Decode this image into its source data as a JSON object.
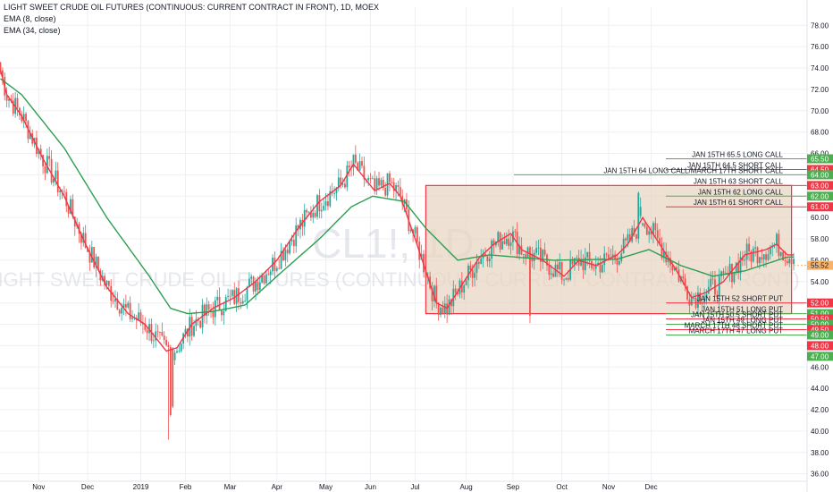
{
  "header": {
    "title": "LIGHT SWEET CRUDE OIL FUTURES (CONTINUOUS: CURRENT CONTRACT IN FRONT), 1D, MOEX",
    "indicator1": "EMA (8, close)",
    "indicator2": "EMA (34, close)"
  },
  "watermark": {
    "symbol": "CL1!, 1D",
    "description": "LIGHT SWEET CRUDE OIL FUTURES (CONTINUOUS: CURRENT CONTRACT IN FRONT)"
  },
  "chart_data": {
    "type": "candlestick",
    "ylim": [
      35.3,
      79.7
    ],
    "y_ticks": [
      36,
      38,
      40,
      42,
      44,
      46,
      48,
      50,
      52,
      54,
      56,
      58,
      60,
      62,
      64,
      66,
      68,
      70,
      72,
      74,
      76,
      78
    ],
    "x_ticks": [
      "Nov",
      "Dec",
      "2019",
      "Feb",
      "Mar",
      "Apr",
      "May",
      "Jun",
      "Jul",
      "Aug",
      "Sep",
      "Oct",
      "Nov",
      "Dec"
    ],
    "last_price": "55.52",
    "ema_fast_key": [
      [
        0,
        73.8
      ],
      [
        3,
        71.5
      ],
      [
        10,
        69.5
      ],
      [
        20,
        65.5
      ],
      [
        30,
        62
      ],
      [
        40,
        57.5
      ],
      [
        50,
        53.5
      ],
      [
        60,
        51
      ],
      [
        68,
        50
      ],
      [
        74,
        48.5
      ],
      [
        78,
        47.5
      ],
      [
        83,
        47.8
      ],
      [
        90,
        50
      ],
      [
        100,
        51.5
      ],
      [
        110,
        52.5
      ],
      [
        120,
        54
      ],
      [
        130,
        56
      ],
      [
        140,
        59
      ],
      [
        150,
        61.5
      ],
      [
        160,
        63
      ],
      [
        166,
        65
      ],
      [
        170,
        64
      ],
      [
        176,
        62.5
      ],
      [
        183,
        63.2
      ],
      [
        188,
        62
      ],
      [
        195,
        58
      ],
      [
        205,
        52
      ],
      [
        210,
        51.5
      ],
      [
        218,
        54
      ],
      [
        225,
        56.2
      ],
      [
        232,
        57.5
      ],
      [
        240,
        58.5
      ],
      [
        245,
        57
      ],
      [
        255,
        56
      ],
      [
        265,
        54.5
      ],
      [
        272,
        56
      ],
      [
        280,
        55.5
      ],
      [
        290,
        56.5
      ],
      [
        295,
        57.5
      ],
      [
        302,
        60
      ],
      [
        310,
        57.5
      ],
      [
        318,
        55
      ],
      [
        325,
        52.5
      ],
      [
        332,
        53
      ],
      [
        340,
        54
      ],
      [
        350,
        56.5
      ],
      [
        360,
        57
      ],
      [
        365,
        57.5
      ],
      [
        370,
        56.5
      ]
    ],
    "ema_slow_key": [
      [
        0,
        73
      ],
      [
        10,
        71.5
      ],
      [
        30,
        66.5
      ],
      [
        50,
        60
      ],
      [
        70,
        54.5
      ],
      [
        80,
        51.5
      ],
      [
        88,
        51
      ],
      [
        100,
        51.2
      ],
      [
        115,
        51.8
      ],
      [
        130,
        54.5
      ],
      [
        150,
        58
      ],
      [
        165,
        61
      ],
      [
        175,
        62
      ],
      [
        190,
        61.5
      ],
      [
        200,
        59
      ],
      [
        215,
        56
      ],
      [
        230,
        56.5
      ],
      [
        260,
        56
      ],
      [
        290,
        56.1
      ],
      [
        305,
        57
      ],
      [
        320,
        55.5
      ],
      [
        335,
        54.5
      ],
      [
        350,
        55
      ],
      [
        370,
        56.3
      ]
    ],
    "annotations": [
      {
        "label": "JAN 15TH 65.5 LONG CALL",
        "price": 65.5,
        "price_label": "65.50",
        "color": "#4caf50"
      },
      {
        "label": "JAN 15TH 64.5 SHORT CALL",
        "price": 64.5,
        "price_label": "64.50",
        "color": "#f23645"
      },
      {
        "label": "JAN 15TH 64 LONG CALL/MARCH 17TH SHORT CALL",
        "price": 64.0,
        "price_label": "64.00",
        "color": "#4caf50"
      },
      {
        "label": "JAN 15TH 63 SHORT CALL",
        "price": 63.0,
        "price_label": "63.00",
        "color": "#f23645"
      },
      {
        "label": "JAN 15TH 62 LONG CALL",
        "price": 62.0,
        "price_label": "62.00",
        "color": "#4caf50"
      },
      {
        "label": "JAN 15TH 61 SHORT CALL",
        "price": 61.0,
        "price_label": "61.00",
        "color": "#f23645"
      },
      {
        "label": "JAN 15TH 52 SHORT PUT",
        "price": 52.0,
        "price_label": "52.00",
        "color": "#f23645"
      },
      {
        "label": "JAN 15TH 51 LONG PUT",
        "price": 51.0,
        "price_label": "51.00",
        "color": "#4caf50"
      },
      {
        "label": "JAN 15TH 50.5 SHORT PUT",
        "price": 50.5,
        "price_label": "50.50",
        "color": "#f23645"
      },
      {
        "label": "JAN 15TH 49 LONG PUT",
        "price": 50.0,
        "price_label": "50.00",
        "color": "#4caf50"
      },
      {
        "label": "MARCH 17TH 48 SHORT PUT",
        "price": 49.5,
        "price_label": "49.50",
        "color": "#f23645"
      },
      {
        "label": "MARCH 17TH 47 LONG PUT",
        "price": 49.0,
        "price_label": "49.00",
        "color": "#4caf50"
      }
    ],
    "extra_price_labels": [
      {
        "price": 48.0,
        "label": "48.00",
        "color": "#f23645"
      },
      {
        "price": 47.0,
        "label": "47.00",
        "color": "#4caf50"
      }
    ],
    "box_range": {
      "top": 63.0,
      "bottom": 51.0
    },
    "colors": {
      "up": "#26a69a",
      "down": "#ef5350",
      "ema_fast": "#f23645",
      "ema_slow": "#2e9e4f",
      "box_border": "#f23645",
      "box_fill": "#e8d6c3",
      "last_price_bg": "#f7b26a"
    }
  }
}
